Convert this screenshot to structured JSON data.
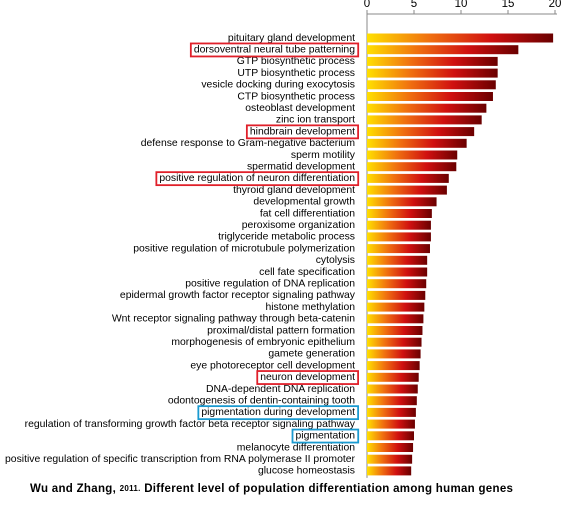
{
  "chart_data": {
    "type": "bar",
    "orientation": "horizontal",
    "categories": [
      "pituitary gland development",
      "dorsoventral neural tube patterning",
      "GTP biosynthetic process",
      "UTP biosynthetic process",
      "vesicle docking during exocytosis",
      "CTP biosynthetic process",
      "osteoblast development",
      "zinc ion transport",
      "hindbrain development",
      "defense response to Gram-negative bacterium",
      "sperm motility",
      "spermatid development",
      "positive regulation of neuron differentiation",
      "thyroid gland development",
      "developmental growth",
      "fat cell differentiation",
      "peroxisome organization",
      "triglyceride metabolic process",
      "positive regulation of microtubule polymerization",
      "cytolysis",
      "cell fate specification",
      "positive regulation of DNA replication",
      "epidermal growth factor receptor signaling pathway",
      "histone methylation",
      "Wnt receptor signaling pathway through beta-catenin",
      "proximal/distal pattern formation",
      "morphogenesis of embryonic epithelium",
      "gamete generation",
      "eye photoreceptor cell development",
      "neuron development",
      "DNA-dependent DNA replication",
      "odontogenesis of dentin-containing tooth",
      "pigmentation during development",
      "regulation of transforming growth factor beta receptor signaling pathway",
      "pigmentation",
      "melanocyte differentiation",
      "positive regulation of specific transcription from RNA polymerase II promoter",
      "glucose homeostasis"
    ],
    "values": [
      19.8,
      16.1,
      13.9,
      13.9,
      13.7,
      13.4,
      12.7,
      12.2,
      11.4,
      10.6,
      9.6,
      9.5,
      8.7,
      8.5,
      7.4,
      6.9,
      6.8,
      6.8,
      6.7,
      6.4,
      6.4,
      6.3,
      6.2,
      6.1,
      6.0,
      5.9,
      5.8,
      5.7,
      5.6,
      5.5,
      5.4,
      5.3,
      5.2,
      5.1,
      5.0,
      4.9,
      4.8,
      4.7
    ],
    "xlim": [
      0,
      20
    ],
    "xticks": [
      0,
      5,
      10,
      15,
      20
    ],
    "gradient": [
      "#ffe000",
      "#f07010",
      "#d01010",
      "#6a0000"
    ],
    "highlights": [
      {
        "index": 1,
        "color": "#e0202a"
      },
      {
        "index": 8,
        "color": "#e0202a"
      },
      {
        "index": 12,
        "color": "#e0202a"
      },
      {
        "index": 29,
        "color": "#e0202a"
      },
      {
        "index": 32,
        "color": "#1a9ad0"
      },
      {
        "index": 34,
        "color": "#1a9ad0"
      }
    ],
    "caption": {
      "authors": "Wu and Zhang,",
      "year": "2011.",
      "text": "Different level of population differentiation among human genes"
    }
  }
}
